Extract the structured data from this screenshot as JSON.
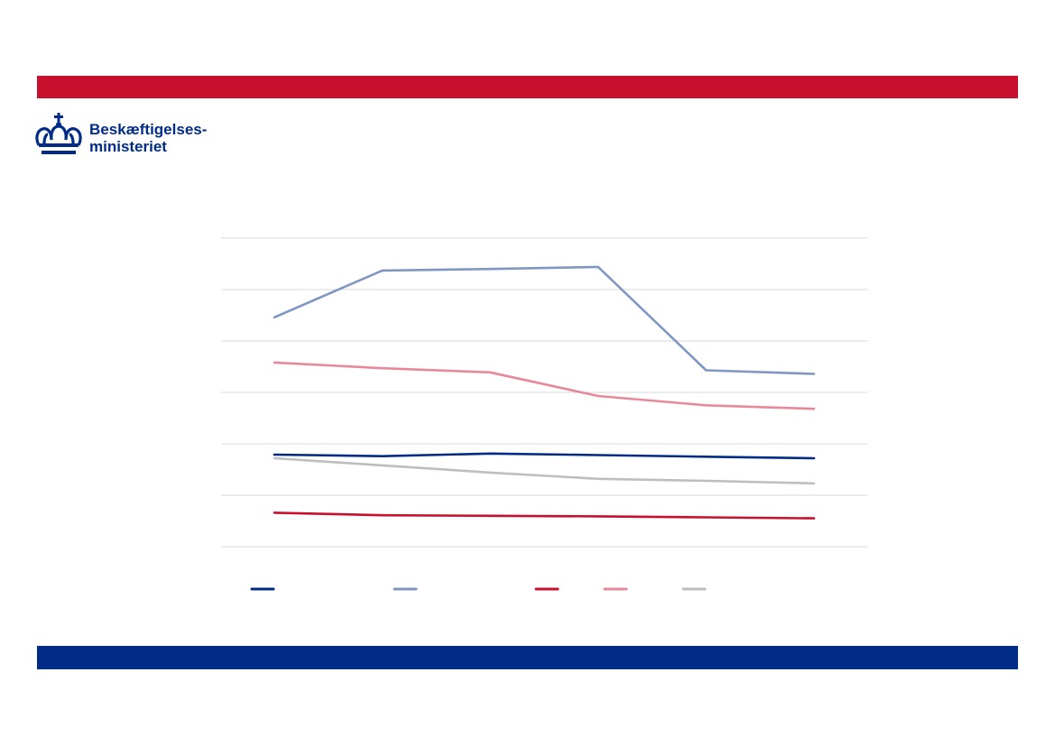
{
  "colors": {
    "red_band": "#C8102E",
    "blue_band": "#002C88",
    "logo_blue": "#002C88",
    "gridline": "#D9D9D9"
  },
  "logo": {
    "icon": "crown-icon",
    "line1": "Beskæftigelses-",
    "line2": "ministeriet"
  },
  "chart_data": {
    "type": "line",
    "categories": [
      "",
      "",
      "",
      "",
      "",
      ""
    ],
    "ylim": [
      0,
      6
    ],
    "grid": true,
    "legend_position": "bottom",
    "series": [
      {
        "color": "#002C88",
        "values": [
          1.79,
          1.76,
          1.81,
          1.78,
          1.75,
          1.72
        ]
      },
      {
        "color": "#8097C4",
        "values": [
          4.46,
          5.37,
          5.4,
          5.44,
          3.43,
          3.36
        ]
      },
      {
        "color": "#C8102E",
        "values": [
          0.66,
          0.61,
          0.6,
          0.59,
          0.57,
          0.55
        ]
      },
      {
        "color": "#E7899A",
        "values": [
          3.58,
          3.47,
          3.39,
          2.93,
          2.75,
          2.68
        ]
      },
      {
        "color": "#BEBEBE",
        "values": [
          1.72,
          1.58,
          1.44,
          1.32,
          1.28,
          1.23
        ]
      }
    ]
  }
}
